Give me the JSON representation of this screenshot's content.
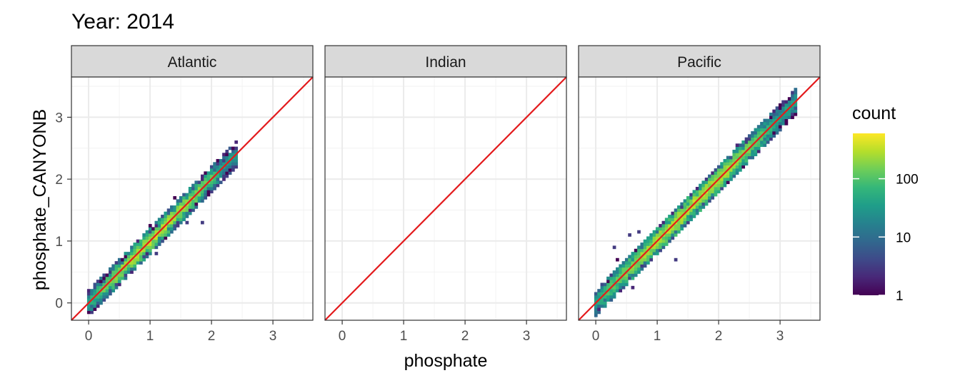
{
  "chart_data": {
    "type": "heatmap",
    "title": "Year: 2014",
    "xlabel": "phosphate",
    "ylabel": "phosphate_CANYONB",
    "xlim": [
      -0.28,
      3.65
    ],
    "ylim": [
      -0.28,
      3.65
    ],
    "x_ticks": [
      "0",
      "1",
      "2",
      "3"
    ],
    "y_ticks": [
      "0",
      "1",
      "2",
      "3"
    ],
    "grid": true,
    "reference_line": {
      "type": "identity",
      "slope": 1,
      "intercept": 0,
      "color": "#e31a1c"
    },
    "facets": [
      {
        "name": "Atlantic",
        "x_range": [
          0.0,
          2.4
        ],
        "spread": 0.13,
        "outliers": [
          [
            1.0,
            1.25
          ],
          [
            1.4,
            1.7
          ],
          [
            1.6,
            1.3
          ],
          [
            1.85,
            1.3
          ],
          [
            1.1,
            0.8
          ]
        ]
      },
      {
        "name": "Indian",
        "x_range": null,
        "spread": 0,
        "outliers": []
      },
      {
        "name": "Pacific",
        "x_range": [
          0.0,
          3.25
        ],
        "spread": 0.15,
        "outliers": [
          [
            0.3,
            0.9
          ],
          [
            0.35,
            0.7
          ],
          [
            0.55,
            1.1
          ],
          [
            0.7,
            1.15
          ],
          [
            0.9,
            1.1
          ],
          [
            1.2,
            1.3
          ],
          [
            2.0,
            2.2
          ],
          [
            2.3,
            2.55
          ],
          [
            1.3,
            0.7
          ],
          [
            0.6,
            0.25
          ]
        ]
      }
    ],
    "legend": {
      "title": "count",
      "scale": "log10",
      "range": [
        1,
        600
      ],
      "ticks": [
        "1",
        "10",
        "100"
      ],
      "tick_values": [
        1,
        10,
        100
      ],
      "placement": "right",
      "colors": [
        "#440154",
        "#482878",
        "#3e4a89",
        "#31688e",
        "#26828e",
        "#1f9e89",
        "#35b779",
        "#6ece58",
        "#b5de2b",
        "#fde725"
      ]
    }
  }
}
